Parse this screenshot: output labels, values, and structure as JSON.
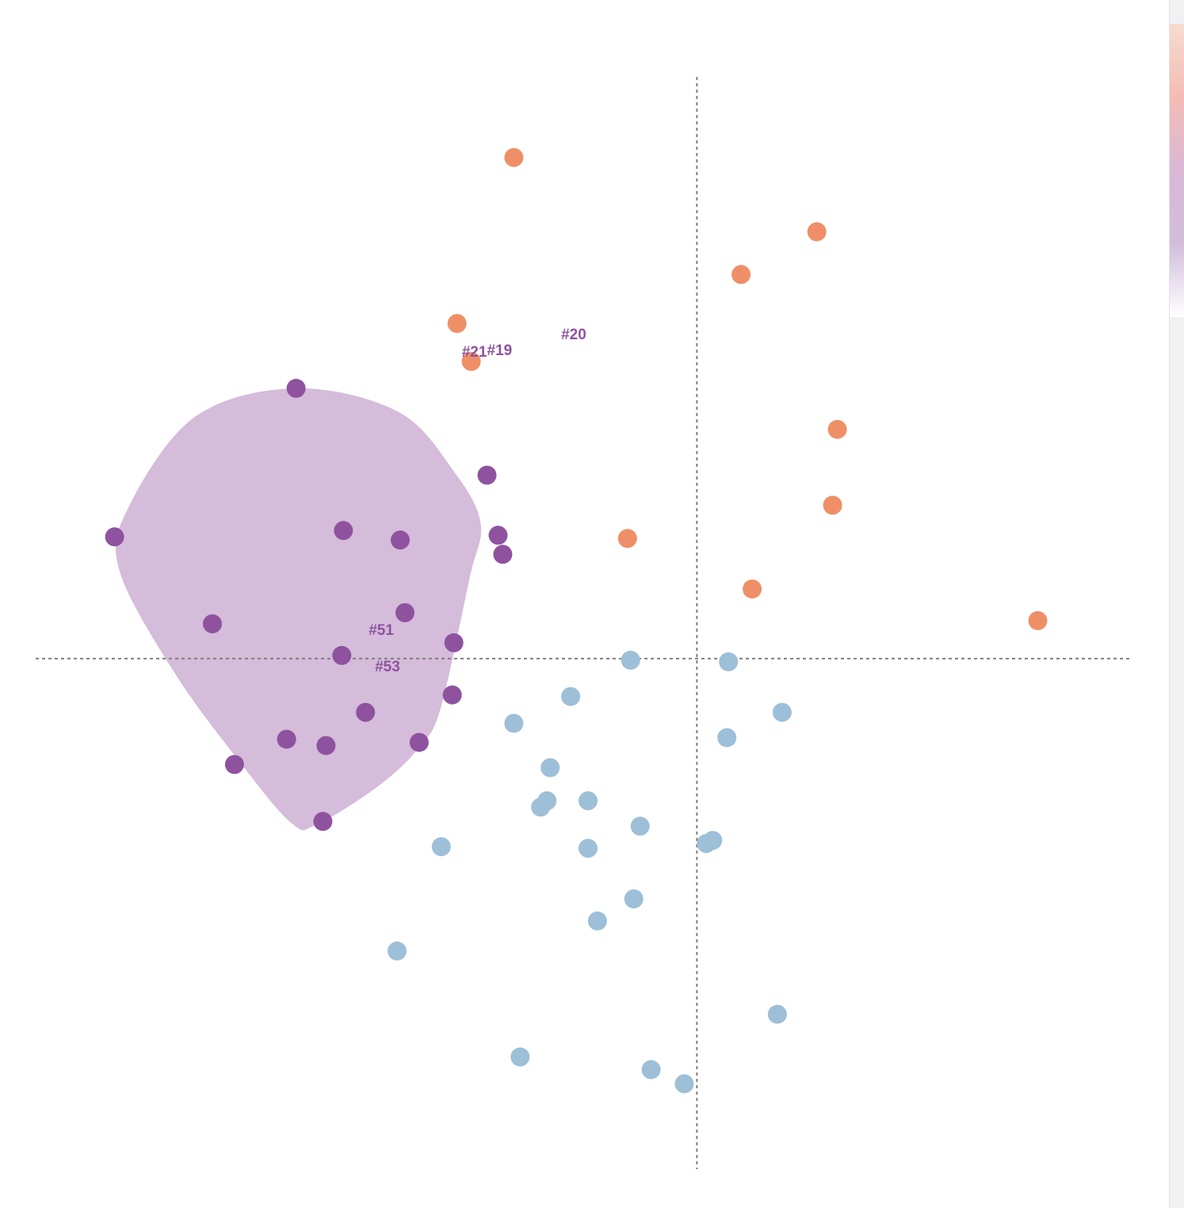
{
  "colors": {
    "orange": "#ef8f67",
    "blue": "#9dbfd8",
    "purple": "#8f529f",
    "hull": "#d4bcda",
    "label": "#8f529f",
    "axis": "#7f7f7f"
  },
  "side_gradient": [
    "#f6dcd0",
    "#f3bcb4",
    "#dab8d6",
    "#d2bddc",
    "#ffffff"
  ],
  "chart_data": {
    "type": "scatter",
    "title": "",
    "xlabel": "",
    "ylabel": "",
    "xlim": [
      -4.19,
      2.74
    ],
    "ylim": [
      -3.23,
      3.68
    ],
    "reference_lines": {
      "x": 0,
      "y": 0
    },
    "grid": false,
    "legend": "none",
    "hull": {
      "series": "purple",
      "outline": [
        [
          -2.54,
          1.71
        ],
        [
          -1.89,
          1.56
        ],
        [
          -1.53,
          1.17
        ],
        [
          -1.37,
          0.85
        ],
        [
          -1.44,
          0.51
        ],
        [
          -1.62,
          -0.3
        ],
        [
          -1.75,
          -0.55
        ],
        [
          -2.01,
          -0.8
        ],
        [
          -2.41,
          -1.05
        ],
        [
          -2.57,
          -1.04
        ],
        [
          -2.9,
          -0.65
        ],
        [
          -3.31,
          -0.09
        ],
        [
          -3.66,
          0.56
        ],
        [
          -3.6,
          0.96
        ],
        [
          -3.18,
          1.53
        ]
      ]
    },
    "series": [
      {
        "color": "orange",
        "points": [
          [
            -1.16,
            3.17
          ],
          [
            0.76,
            2.7
          ],
          [
            0.28,
            2.43
          ],
          [
            -1.52,
            2.12
          ],
          [
            -1.43,
            1.88
          ],
          [
            0.89,
            1.45
          ],
          [
            0.86,
            0.97
          ],
          [
            -0.44,
            0.76
          ],
          [
            0.35,
            0.44
          ],
          [
            2.16,
            0.24
          ]
        ]
      },
      {
        "color": "blue",
        "points": [
          [
            -0.42,
            -0.01
          ],
          [
            0.2,
            -0.02
          ],
          [
            -0.8,
            -0.24
          ],
          [
            0.54,
            -0.34
          ],
          [
            -1.16,
            -0.41
          ],
          [
            0.19,
            -0.5
          ],
          [
            -0.93,
            -0.69
          ],
          [
            -0.95,
            -0.9
          ],
          [
            -0.99,
            -0.94
          ],
          [
            -0.69,
            -0.9
          ],
          [
            -0.36,
            -1.06
          ],
          [
            0.1,
            -1.15
          ],
          [
            0.06,
            -1.17
          ],
          [
            -1.62,
            -1.19
          ],
          [
            -0.69,
            -1.2
          ],
          [
            -0.4,
            -1.52
          ],
          [
            -0.63,
            -1.66
          ],
          [
            -1.9,
            -1.85
          ],
          [
            0.51,
            -2.25
          ],
          [
            -1.12,
            -2.52
          ],
          [
            -0.29,
            -2.6
          ],
          [
            -0.08,
            -2.69
          ]
        ]
      },
      {
        "color": "purple",
        "points": [
          [
            -2.54,
            1.71
          ],
          [
            -1.33,
            1.16
          ],
          [
            -3.69,
            0.77
          ],
          [
            -2.24,
            0.81
          ],
          [
            -1.88,
            0.75
          ],
          [
            -1.26,
            0.78
          ],
          [
            -1.23,
            0.66
          ],
          [
            -3.07,
            0.22
          ],
          [
            -1.85,
            0.29
          ],
          [
            -1.54,
            0.1
          ],
          [
            -2.25,
            0.02
          ],
          [
            -1.55,
            -0.23
          ],
          [
            -2.1,
            -0.34
          ],
          [
            -2.6,
            -0.51
          ],
          [
            -2.35,
            -0.55
          ],
          [
            -1.76,
            -0.53
          ],
          [
            -2.93,
            -0.67
          ],
          [
            -2.37,
            -1.03
          ]
        ]
      }
    ],
    "annotations": [
      {
        "text": "#21",
        "x": -1.49,
        "y": 1.91
      },
      {
        "text": "#19",
        "x": -1.33,
        "y": 1.92
      },
      {
        "text": "#20",
        "x": -0.86,
        "y": 2.02
      },
      {
        "text": "#51",
        "x": -2.08,
        "y": 0.15
      },
      {
        "text": "#53",
        "x": -2.04,
        "y": -0.08
      }
    ]
  }
}
